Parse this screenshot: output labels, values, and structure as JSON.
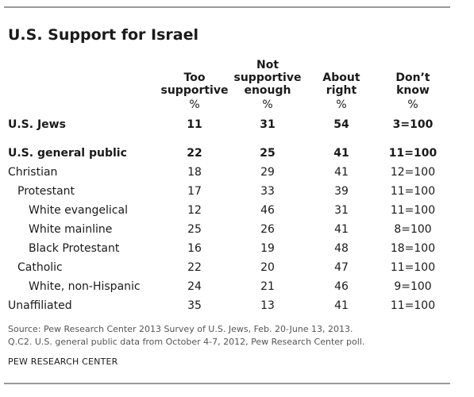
{
  "chart_data": {
    "type": "table",
    "title": "U.S. Support for Israel",
    "columns": [
      "Too supportive",
      "Not supportive enough",
      "About right",
      "Don’t know"
    ],
    "column_header_lines": [
      [
        "Too",
        "supportive"
      ],
      [
        "Not",
        "supportive",
        "enough"
      ],
      [
        "About",
        "right"
      ],
      [
        "Don’t",
        "know"
      ]
    ],
    "unit_row": [
      "%",
      "%",
      "%",
      "%"
    ],
    "rows": [
      {
        "label": "U.S. Jews",
        "indent": 0,
        "bold": true,
        "values": [
          "11",
          "31",
          "54",
          "3=100"
        ]
      },
      {
        "label": "U.S. general public",
        "indent": 0,
        "bold": true,
        "values": [
          "22",
          "25",
          "41",
          "11=100"
        ]
      },
      {
        "label": "Christian",
        "indent": 0,
        "bold": false,
        "values": [
          "18",
          "29",
          "41",
          "12=100"
        ]
      },
      {
        "label": "Protestant",
        "indent": 1,
        "bold": false,
        "values": [
          "17",
          "33",
          "39",
          "11=100"
        ]
      },
      {
        "label": "White evangelical",
        "indent": 2,
        "bold": false,
        "values": [
          "12",
          "46",
          "31",
          "11=100"
        ]
      },
      {
        "label": "White mainline",
        "indent": 2,
        "bold": false,
        "values": [
          "25",
          "26",
          "41",
          "8=100"
        ]
      },
      {
        "label": "Black Protestant",
        "indent": 2,
        "bold": false,
        "values": [
          "16",
          "19",
          "48",
          "18=100"
        ]
      },
      {
        "label": "Catholic",
        "indent": 1,
        "bold": false,
        "values": [
          "22",
          "20",
          "47",
          "11=100"
        ]
      },
      {
        "label": "White, non-Hispanic",
        "indent": 2,
        "bold": false,
        "values": [
          "24",
          "21",
          "46",
          "9=100"
        ]
      },
      {
        "label": "Unaffiliated",
        "indent": 0,
        "bold": false,
        "values": [
          "35",
          "13",
          "41",
          "11=100"
        ]
      }
    ]
  },
  "source_lines": [
    "Source: Pew Research Center 2013 Survey of U.S. Jews, Feb. 20-June 13, 2013.",
    "Q.C2.  U.S. general public data from October 4-7, 2012, Pew Research Center poll."
  ],
  "credit": "PEW RESEARCH CENTER"
}
